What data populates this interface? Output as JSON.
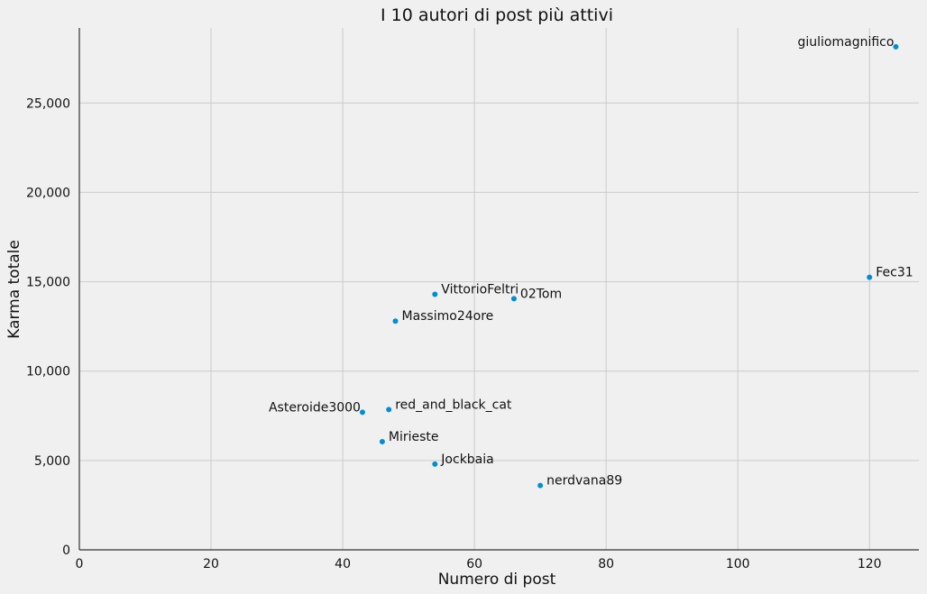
{
  "chart_data": {
    "type": "scatter",
    "title": "I 10 autori di post più attivi",
    "xlabel": "Numero di post",
    "ylabel": "Karma totale",
    "xlim": [
      0,
      127.5
    ],
    "ylim": [
      0,
      29200
    ],
    "xticks": [
      0,
      20,
      40,
      60,
      80,
      100,
      120
    ],
    "yticks": [
      0,
      5000,
      10000,
      15000,
      20000,
      25000
    ],
    "xtick_labels": [
      "0",
      "20",
      "40",
      "60",
      "80",
      "100",
      "120"
    ],
    "ytick_labels": [
      "0",
      "5,000",
      "10,000",
      "15,000",
      "20,000",
      "25,000"
    ],
    "grid": true,
    "color": "#008fd5",
    "points": [
      {
        "label": "giuliomagnifico",
        "x": 124,
        "y": 28150,
        "label_side": "left"
      },
      {
        "label": "Fec31",
        "x": 120,
        "y": 15250,
        "label_side": "right"
      },
      {
        "label": "VittorioFeltri",
        "x": 54,
        "y": 14300,
        "label_side": "right"
      },
      {
        "label": "02Tom",
        "x": 66,
        "y": 14050,
        "label_side": "right"
      },
      {
        "label": "Massimo24ore",
        "x": 48,
        "y": 12800,
        "label_side": "right"
      },
      {
        "label": "Asteroide3000",
        "x": 43,
        "y": 7700,
        "label_side": "left"
      },
      {
        "label": "red_and_black_cat",
        "x": 47,
        "y": 7850,
        "label_side": "right"
      },
      {
        "label": "Mirieste",
        "x": 46,
        "y": 6050,
        "label_side": "right"
      },
      {
        "label": "Jockbaia",
        "x": 54,
        "y": 4800,
        "label_side": "right"
      },
      {
        "label": "nerdvana89",
        "x": 70,
        "y": 3600,
        "label_side": "right"
      }
    ]
  }
}
